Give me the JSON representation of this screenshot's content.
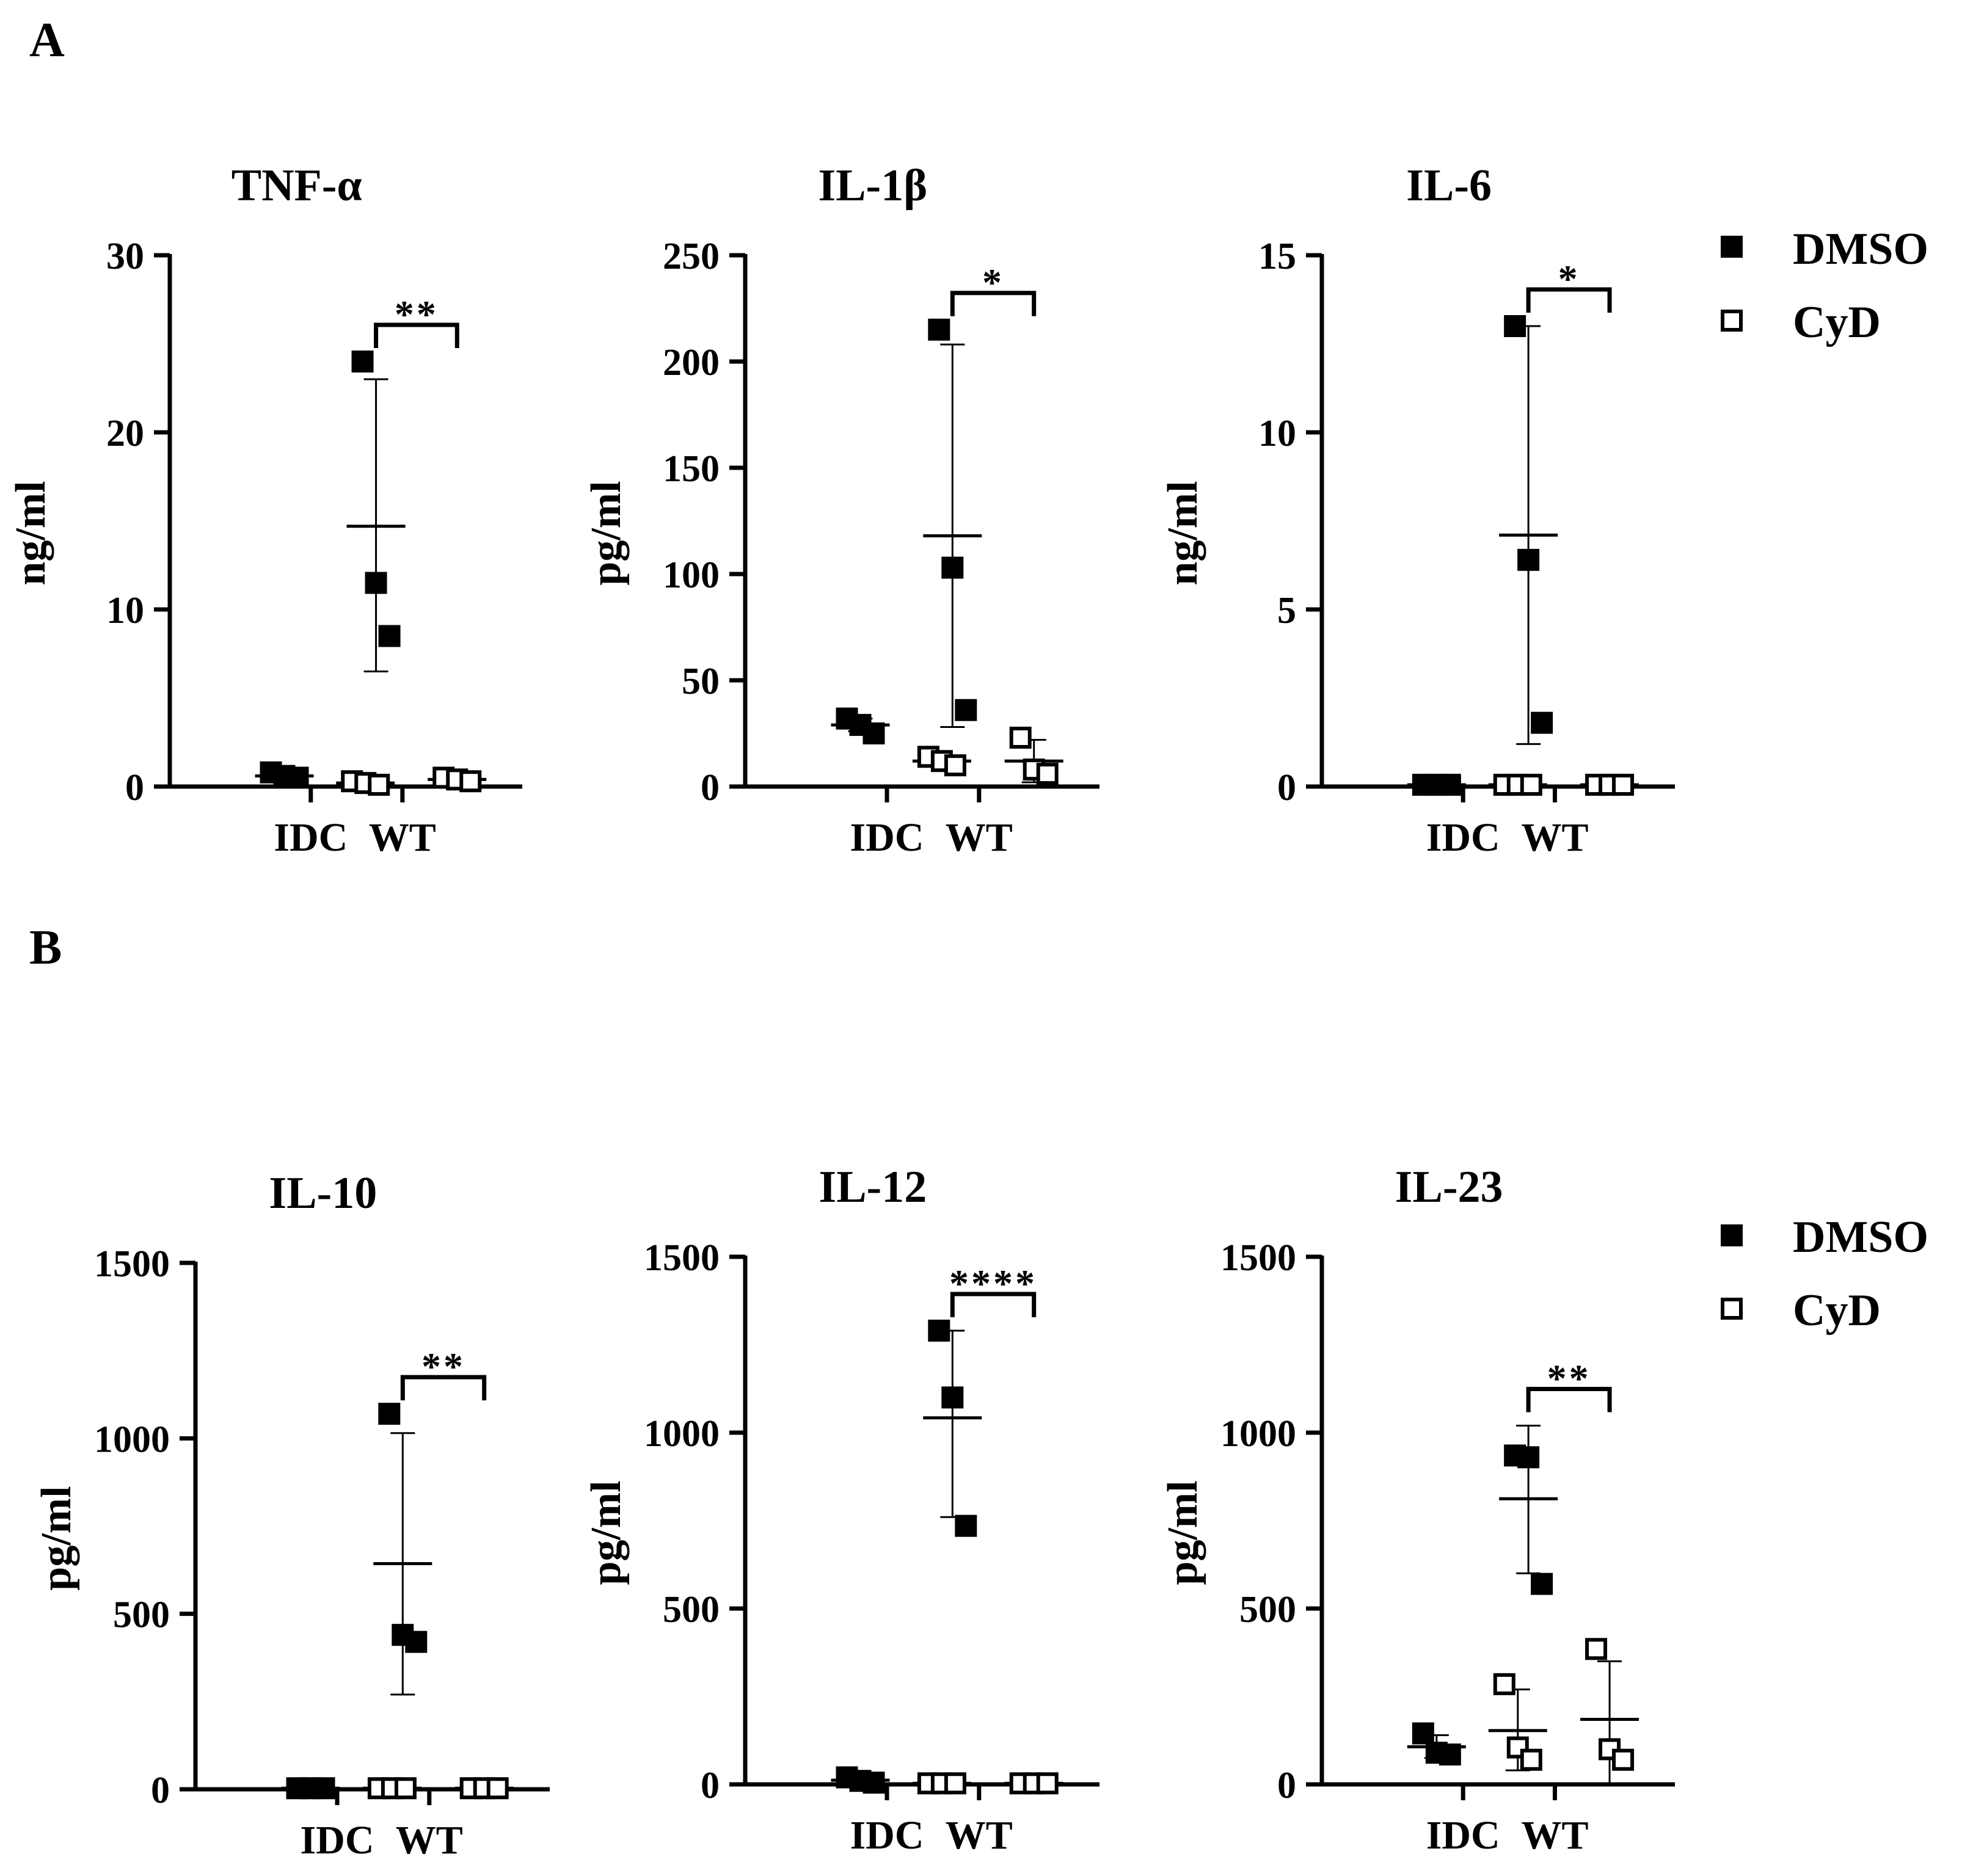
{
  "panel_labels": {
    "a": "A",
    "b": "B"
  },
  "legend": {
    "dmso": "DMSO",
    "cyd": "CyD"
  },
  "colors": {
    "dmso": "#000000",
    "cyd": "#ffffff",
    "axis": "#000000"
  },
  "chart_data": [
    {
      "type": "scatter",
      "id": "tnf",
      "title": "TNF-α",
      "ylabel": "ng/ml",
      "ylim": [
        0,
        30
      ],
      "yticks": [
        0,
        10,
        20,
        30
      ],
      "categories": [
        "IDC",
        "WT"
      ],
      "significance": "**",
      "series": [
        {
          "name": "DMSO",
          "groups": [
            {
              "category": "IDC",
              "points": [
                0.8,
                0.6,
                0.5
              ],
              "mean": 0.6,
              "err": [
                0.4,
                0.8
              ]
            },
            {
              "category": "WT",
              "points": [
                24,
                11.5,
                8.5
              ],
              "mean": 14.7,
              "err": [
                6.5,
                23
              ]
            }
          ]
        },
        {
          "name": "CyD",
          "groups": [
            {
              "category": "IDC",
              "points": [
                0.3,
                0.2,
                0.1
              ],
              "mean": 0.2,
              "err": [
                0.1,
                0.3
              ]
            },
            {
              "category": "WT",
              "points": [
                0.5,
                0.4,
                0.3
              ],
              "mean": 0.4,
              "err": [
                0.3,
                0.5
              ]
            }
          ]
        }
      ]
    },
    {
      "type": "scatter",
      "id": "il1b",
      "title": "IL-1β",
      "ylabel": "pg/ml",
      "ylim": [
        0,
        250
      ],
      "yticks": [
        0,
        50,
        100,
        150,
        200,
        250
      ],
      "categories": [
        "IDC",
        "WT"
      ],
      "significance": "*",
      "series": [
        {
          "name": "DMSO",
          "groups": [
            {
              "category": "IDC",
              "points": [
                32,
                29,
                25
              ],
              "mean": 29,
              "err": [
                26,
                32
              ]
            },
            {
              "category": "WT",
              "points": [
                215,
                103,
                36
              ],
              "mean": 118,
              "err": [
                28,
                208
              ]
            }
          ]
        },
        {
          "name": "CyD",
          "groups": [
            {
              "category": "IDC",
              "points": [
                14,
                12,
                10
              ],
              "mean": 12,
              "err": [
                10,
                14
              ]
            },
            {
              "category": "WT",
              "points": [
                23,
                8,
                6
              ],
              "mean": 12,
              "err": [
                2,
                22
              ]
            }
          ]
        }
      ]
    },
    {
      "type": "scatter",
      "id": "il6",
      "title": "IL-6",
      "ylabel": "ng/ml",
      "ylim": [
        0,
        15
      ],
      "yticks": [
        0,
        5,
        10,
        15
      ],
      "categories": [
        "IDC",
        "WT"
      ],
      "significance": "*",
      "series": [
        {
          "name": "DMSO",
          "groups": [
            {
              "category": "IDC",
              "points": [
                0.05,
                0.05,
                0.05
              ],
              "mean": 0.05,
              "err": [
                0,
                0.1
              ]
            },
            {
              "category": "WT",
              "points": [
                13,
                6.4,
                1.8
              ],
              "mean": 7.1,
              "err": [
                1.2,
                13
              ]
            }
          ]
        },
        {
          "name": "CyD",
          "groups": [
            {
              "category": "IDC",
              "points": [
                0.05,
                0.05,
                0.05
              ],
              "mean": 0.05,
              "err": [
                0,
                0.1
              ]
            },
            {
              "category": "WT",
              "points": [
                0.05,
                0.05,
                0.05
              ],
              "mean": 0.05,
              "err": [
                0,
                0.1
              ]
            }
          ]
        }
      ]
    },
    {
      "type": "scatter",
      "id": "il10",
      "title": "IL-10",
      "ylabel": "pg/ml",
      "ylim": [
        0,
        1500
      ],
      "yticks": [
        0,
        500,
        1000,
        1500
      ],
      "categories": [
        "IDC",
        "WT"
      ],
      "significance": "**",
      "series": [
        {
          "name": "DMSO",
          "groups": [
            {
              "category": "IDC",
              "points": [
                3,
                3,
                3
              ],
              "mean": 3,
              "err": [
                0,
                6
              ]
            },
            {
              "category": "WT",
              "points": [
                1070,
                440,
                420
              ],
              "mean": 643,
              "err": [
                270,
                1015
              ]
            }
          ]
        },
        {
          "name": "CyD",
          "groups": [
            {
              "category": "IDC",
              "points": [
                3,
                3,
                3
              ],
              "mean": 3,
              "err": [
                0,
                6
              ]
            },
            {
              "category": "WT",
              "points": [
                3,
                3,
                3
              ],
              "mean": 3,
              "err": [
                0,
                6
              ]
            }
          ]
        }
      ]
    },
    {
      "type": "scatter",
      "id": "il12",
      "title": "IL-12",
      "ylabel": "pg/ml",
      "ylim": [
        0,
        1500
      ],
      "yticks": [
        0,
        500,
        1000,
        1500
      ],
      "categories": [
        "IDC",
        "WT"
      ],
      "significance": "****",
      "series": [
        {
          "name": "DMSO",
          "groups": [
            {
              "category": "IDC",
              "points": [
                20,
                10,
                5
              ],
              "mean": 12,
              "err": [
                2,
                22
              ]
            },
            {
              "category": "WT",
              "points": [
                1290,
                1100,
                735
              ],
              "mean": 1042,
              "err": [
                760,
                1290
              ]
            }
          ]
        },
        {
          "name": "CyD",
          "groups": [
            {
              "category": "IDC",
              "points": [
                3,
                3,
                3
              ],
              "mean": 3,
              "err": [
                0,
                6
              ]
            },
            {
              "category": "WT",
              "points": [
                3,
                3,
                3
              ],
              "mean": 3,
              "err": [
                0,
                6
              ]
            }
          ]
        }
      ]
    },
    {
      "type": "scatter",
      "id": "il23",
      "title": "IL-23",
      "ylabel": "pg/ml",
      "ylim": [
        0,
        1500
      ],
      "yticks": [
        0,
        500,
        1000,
        1500
      ],
      "categories": [
        "IDC",
        "WT"
      ],
      "significance": "**",
      "series": [
        {
          "name": "DMSO",
          "groups": [
            {
              "category": "IDC",
              "points": [
                145,
                90,
                85
              ],
              "mean": 107,
              "err": [
                75,
                140
              ]
            },
            {
              "category": "WT",
              "points": [
                935,
                930,
                570
              ],
              "mean": 812,
              "err": [
                600,
                1020
              ]
            }
          ]
        },
        {
          "name": "CyD",
          "groups": [
            {
              "category": "IDC",
              "points": [
                285,
                105,
                70
              ],
              "mean": 153,
              "err": [
                40,
                270
              ]
            },
            {
              "category": "WT",
              "points": [
                385,
                100,
                70
              ],
              "mean": 185,
              "err": [
                0,
                350
              ]
            }
          ]
        }
      ]
    }
  ]
}
